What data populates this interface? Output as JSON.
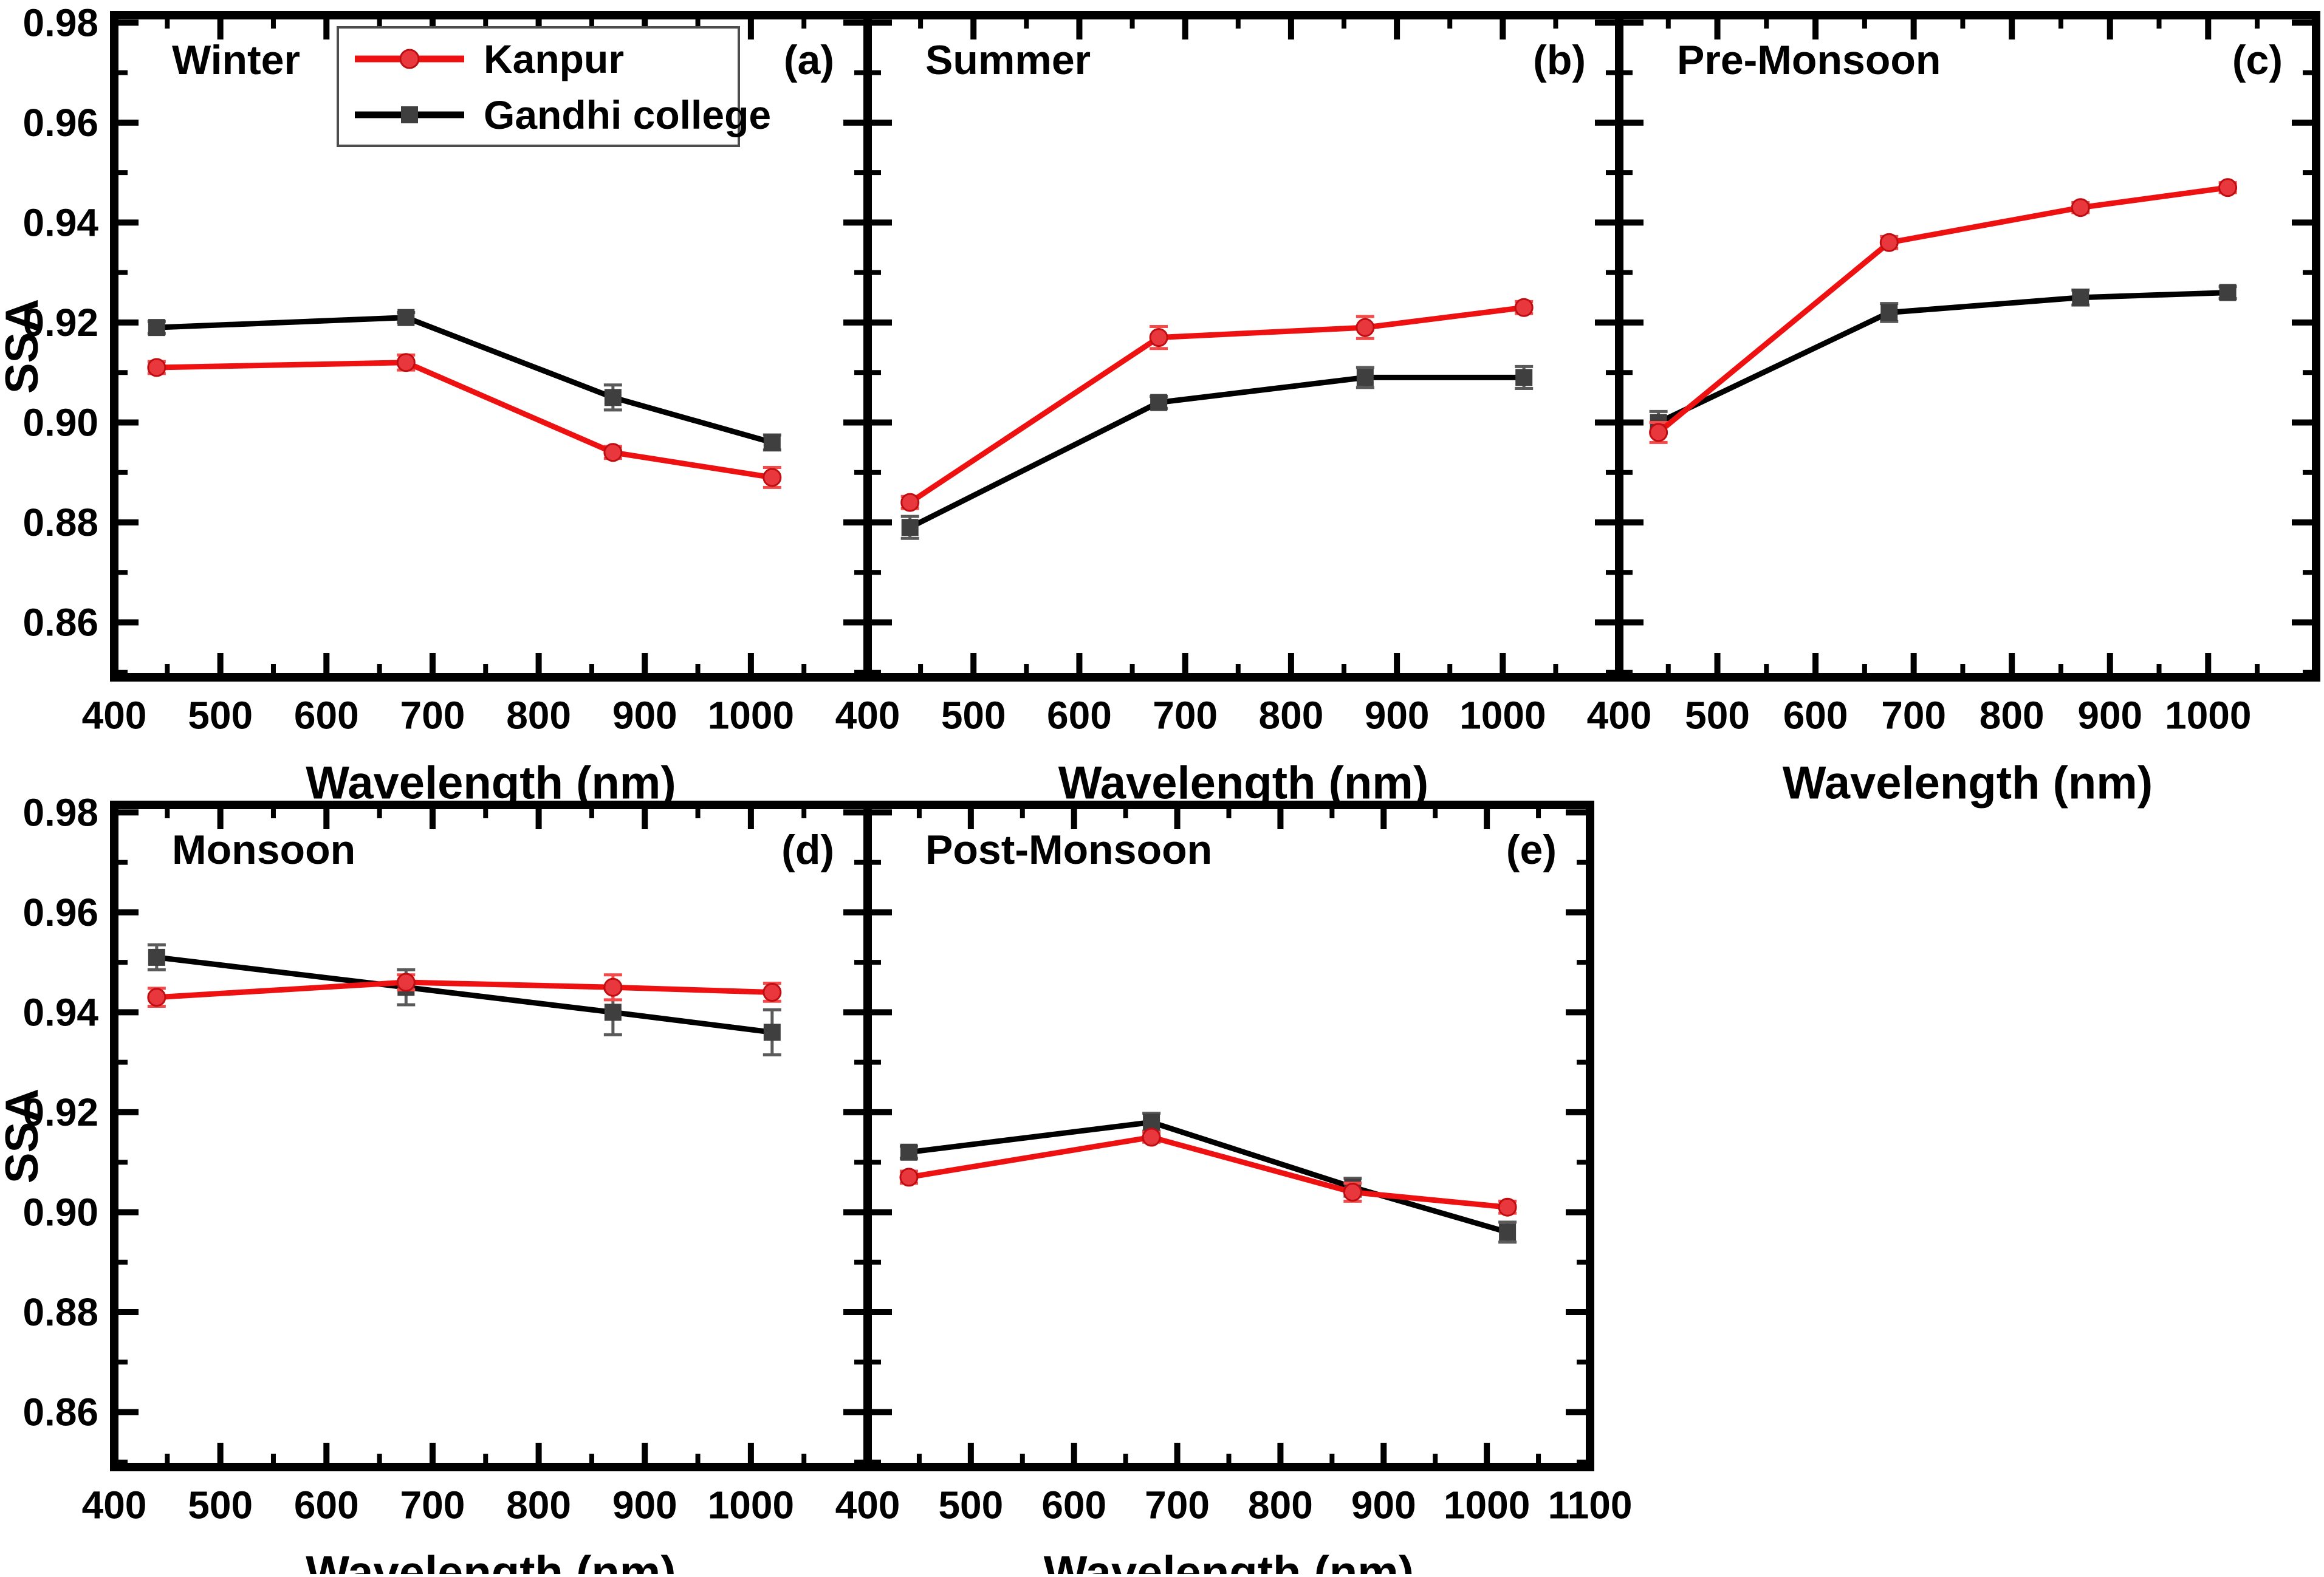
{
  "figure": {
    "xlabel": "Wavelength (nm)",
    "ylabel": "SSA",
    "legend": {
      "entries": [
        {
          "label": "Kanpur",
          "marker": "circle",
          "line_color": "#ee1111",
          "marker_color": "#e8373d"
        },
        {
          "label": "Gandhi college",
          "marker": "square",
          "line_color": "#000000",
          "marker_color": "#3f3f3f"
        }
      ]
    }
  },
  "chart_data": {
    "type": "line",
    "x": [
      440,
      675,
      870,
      1020
    ],
    "xlabel": "Wavelength (nm)",
    "ylabel": "SSA",
    "ylim": [
      0.849,
      0.9815
    ],
    "yticks": [
      0.86,
      0.88,
      0.9,
      0.92,
      0.94,
      0.96,
      0.98
    ],
    "ytick_labels": [
      "0.86",
      "0.88",
      "0.90",
      "0.92",
      "0.94",
      "0.96",
      "0.98"
    ],
    "xticks_labeled": [
      400,
      500,
      600,
      700,
      800,
      900,
      1000
    ],
    "xtick_extra_panel_e": 1100,
    "x_minor_step": 50,
    "y_minor_step": 0.01,
    "grid": false,
    "legend_position": "inside-top-left-panel-a",
    "panels": [
      {
        "letter": "(a)",
        "title": "Winter",
        "series": [
          {
            "name": "Kanpur",
            "values": [
              0.911,
              0.912,
              0.894,
              0.889
            ],
            "errors": [
              0.0012,
              0.0015,
              0.0012,
              0.002
            ]
          },
          {
            "name": "Gandhi college",
            "values": [
              0.919,
              0.921,
              0.905,
              0.896
            ],
            "errors": [
              0.0012,
              0.001,
              0.0025,
              0.0015
            ]
          }
        ]
      },
      {
        "letter": "(b)",
        "title": "Summer",
        "series": [
          {
            "name": "Kanpur",
            "values": [
              0.884,
              0.917,
              0.919,
              0.923
            ],
            "errors": [
              0.0012,
              0.0022,
              0.0022,
              0.0012
            ]
          },
          {
            "name": "Gandhi college",
            "values": [
              0.879,
              0.904,
              0.909,
              0.909
            ],
            "errors": [
              0.0022,
              0.0012,
              0.002,
              0.0022
            ]
          }
        ]
      },
      {
        "letter": "(c)",
        "title": "Pre-Monsoon",
        "series": [
          {
            "name": "Kanpur",
            "values": [
              0.898,
              0.936,
              0.943,
              0.947
            ],
            "errors": [
              0.002,
              0.0012,
              0.001,
              0.001
            ]
          },
          {
            "name": "Gandhi college",
            "values": [
              0.9,
              0.922,
              0.925,
              0.926
            ],
            "errors": [
              0.0022,
              0.0018,
              0.0015,
              0.0012
            ]
          }
        ]
      },
      {
        "letter": "(d)",
        "title": "Monsoon",
        "series": [
          {
            "name": "Kanpur",
            "values": [
              0.943,
              0.946,
              0.945,
              0.944
            ],
            "errors": [
              0.0018,
              0.0015,
              0.0025,
              0.0018
            ]
          },
          {
            "name": "Gandhi college",
            "values": [
              0.951,
              0.945,
              0.94,
              0.936
            ],
            "errors": [
              0.0025,
              0.0035,
              0.0045,
              0.0045
            ]
          }
        ]
      },
      {
        "letter": "(e)",
        "title": "Post-Monsoon",
        "series": [
          {
            "name": "Kanpur",
            "values": [
              0.907,
              0.915,
              0.904,
              0.901
            ],
            "errors": [
              0.0012,
              0.001,
              0.0018,
              0.0012
            ]
          },
          {
            "name": "Gandhi college",
            "values": [
              0.912,
              0.918,
              0.905,
              0.896
            ],
            "errors": [
              0.0012,
              0.0018,
              0.0018,
              0.002
            ]
          }
        ]
      }
    ],
    "colors": {
      "kanpur_line": "#ee1111",
      "kanpur_marker": "#e8373d",
      "kanpur_marker_edge": "#c00d12",
      "kanpur_errorbar": "#f34a4a",
      "gandhi_line": "#000000",
      "gandhi_marker": "#3f3f3f",
      "gandhi_errorbar": "#5a5a5a",
      "frame": "#000000",
      "legend_border": "#4d4d4d"
    }
  }
}
